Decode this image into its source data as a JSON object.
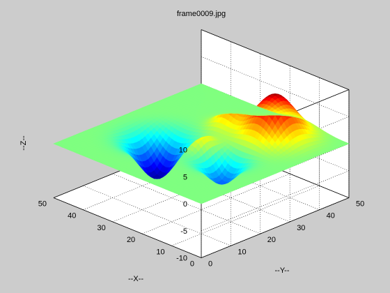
{
  "figure": {
    "background": "#cccccc",
    "axes_background": "#ffffff"
  },
  "chart_data": {
    "type": "surface",
    "title": "frame0009.jpg",
    "xlabel": "--X--",
    "ylabel": "--Y--",
    "zlabel": "--Z--",
    "xlim": [
      0,
      50
    ],
    "ylim": [
      0,
      50
    ],
    "zlim": [
      -10,
      10
    ],
    "xticks": [
      0,
      10,
      20,
      30,
      40,
      50
    ],
    "yticks": [
      0,
      10,
      20,
      30,
      40,
      50
    ],
    "zticks": [
      -10,
      -5,
      0,
      5,
      10
    ],
    "grid": true,
    "view": "isometric, viewed from the (+X, +Y, +Z) direction",
    "colormap": "jet",
    "surface_value_range": [
      -8,
      8
    ],
    "baseline_z": 0,
    "features": [
      {
        "type": "peak",
        "x": 15,
        "y": 40,
        "amplitude": 8.0,
        "sigma": 5.0
      },
      {
        "type": "valley",
        "x": 35,
        "y": 20,
        "amplitude": -7.5,
        "sigma": 4.6
      },
      {
        "type": "valley",
        "x": 15,
        "y": 22,
        "amplitude": -4.5,
        "sigma": 3.8
      },
      {
        "type": "peak",
        "x": 27,
        "y": 37,
        "amplitude": 3.5,
        "sigma": 3.2
      },
      {
        "type": "peak",
        "x": 24,
        "y": 24,
        "amplitude": 2.6,
        "sigma": 2.8
      }
    ]
  }
}
